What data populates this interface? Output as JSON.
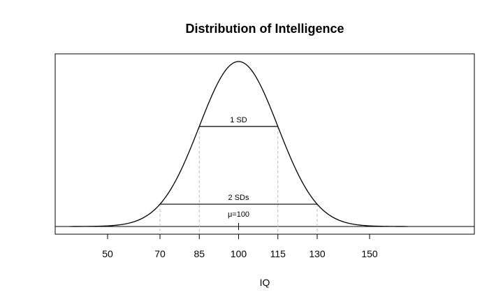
{
  "chart_data": {
    "type": "line",
    "title": "Distribution of Intelligence",
    "xlabel": "IQ",
    "ylabel": "",
    "xlim": [
      30,
      190
    ],
    "ylim": [
      0,
      1.05
    ],
    "grid": false,
    "distribution": {
      "mean": 100,
      "sd": 15
    },
    "x_ticks": [
      50,
      70,
      85,
      100,
      115,
      130,
      150
    ],
    "dashed_lines_x": [
      70,
      85,
      115,
      130
    ],
    "annotations": [
      {
        "label": "1 SD",
        "x_from": 85,
        "x_to": 115
      },
      {
        "label": "2 SDs",
        "x_from": 70,
        "x_to": 130
      }
    ],
    "mean_label": "μ=100",
    "curve_color": "#000000",
    "dashed_color": "#bbbbbb"
  }
}
